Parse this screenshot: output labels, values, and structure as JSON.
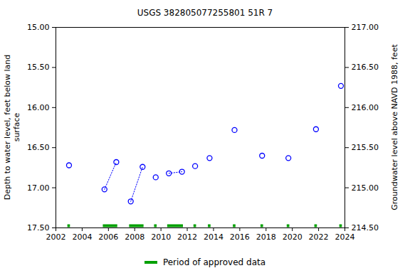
{
  "chart_data": {
    "type": "scatter",
    "title": "USGS 382805077255801 51R  7",
    "ylabel": "Depth to water level, feet below land\nsurface",
    "y2label": "Groundwater level above NAVD 1988, feet",
    "xlim": [
      2002,
      2024
    ],
    "xticks": [
      2002,
      2004,
      2006,
      2008,
      2010,
      2012,
      2014,
      2016,
      2018,
      2020,
      2022,
      2024
    ],
    "ylim": [
      17.5,
      15
    ],
    "yticks": [
      {
        "value": 15,
        "label": "15.00"
      },
      {
        "value": 15.5,
        "label": "15.50"
      },
      {
        "value": 16,
        "label": "16.00"
      },
      {
        "value": 16.5,
        "label": "16.50"
      },
      {
        "value": 17,
        "label": "17.00"
      },
      {
        "value": 17.5,
        "label": "17.50"
      }
    ],
    "y2lim": [
      214.5,
      217
    ],
    "y2ticks": [
      {
        "value": 214.5,
        "label": "214.50"
      },
      {
        "value": 215,
        "label": "215.00"
      },
      {
        "value": 215.5,
        "label": "215.50"
      },
      {
        "value": 216,
        "label": "216.00"
      },
      {
        "value": 216.5,
        "label": "216.50"
      },
      {
        "value": 217,
        "label": "217.00"
      }
    ],
    "grid": false,
    "series": [
      {
        "color": "#0000ff",
        "marker": "circle",
        "line_style": "dotted",
        "x": [
          2003.0
        ],
        "values": [
          16.72
        ]
      },
      {
        "color": "#0000ff",
        "marker": "circle",
        "line_style": "dotted",
        "x": [
          2005.7,
          2006.6
        ],
        "values": [
          17.02,
          16.68
        ]
      },
      {
        "color": "#0000ff",
        "marker": "circle",
        "line_style": "dotted",
        "x": [
          2007.7,
          2008.6
        ],
        "values": [
          17.17,
          16.74
        ]
      },
      {
        "color": "#0000ff",
        "marker": "circle",
        "line_style": "dotted",
        "x": [
          2009.6
        ],
        "values": [
          16.87
        ]
      },
      {
        "color": "#0000ff",
        "marker": "circle",
        "line_style": "dotted",
        "x": [
          2010.6,
          2011.6
        ],
        "values": [
          16.82,
          16.8
        ]
      },
      {
        "color": "#0000ff",
        "marker": "circle",
        "line_style": "dotted",
        "x": [
          2012.6
        ],
        "values": [
          16.73
        ]
      },
      {
        "color": "#0000ff",
        "marker": "circle",
        "line_style": "dotted",
        "x": [
          2013.7
        ],
        "values": [
          16.63
        ]
      },
      {
        "color": "#0000ff",
        "marker": "circle",
        "line_style": "dotted",
        "x": [
          2015.6
        ],
        "values": [
          16.28
        ]
      },
      {
        "color": "#0000ff",
        "marker": "circle",
        "line_style": "dotted",
        "x": [
          2017.7
        ],
        "values": [
          16.6
        ]
      },
      {
        "color": "#0000ff",
        "marker": "circle",
        "line_style": "dotted",
        "x": [
          2019.7
        ],
        "values": [
          16.63
        ]
      },
      {
        "color": "#0000ff",
        "marker": "circle",
        "line_style": "dotted",
        "x": [
          2021.8
        ],
        "values": [
          16.27
        ]
      },
      {
        "color": "#0000ff",
        "marker": "circle",
        "line_style": "dotted",
        "x": [
          2023.7
        ],
        "values": [
          15.73
        ]
      }
    ],
    "approved_periods": {
      "name": "Period of approved data",
      "color": "#00a000",
      "ranges": [
        [
          2002.9,
          2003.1
        ],
        [
          2005.6,
          2006.7
        ],
        [
          2007.6,
          2008.7
        ],
        [
          2009.5,
          2009.7
        ],
        [
          2010.5,
          2011.7
        ],
        [
          2012.5,
          2012.7
        ],
        [
          2013.6,
          2013.8
        ],
        [
          2015.5,
          2015.7
        ],
        [
          2017.6,
          2017.8
        ],
        [
          2019.6,
          2019.8
        ],
        [
          2021.7,
          2021.9
        ],
        [
          2023.6,
          2023.8
        ]
      ]
    },
    "legend": "bottom"
  }
}
